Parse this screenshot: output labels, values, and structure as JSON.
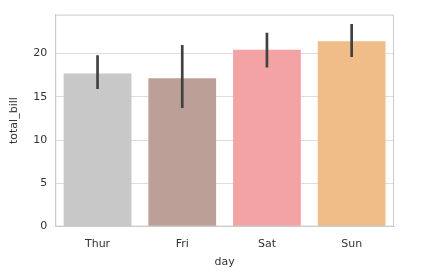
{
  "chart_data": {
    "type": "bar",
    "x_label": "day",
    "y_label": "total_bill",
    "categories": [
      "Thur",
      "Fri",
      "Sat",
      "Sun"
    ],
    "values": [
      17.68,
      17.15,
      20.44,
      21.41
    ],
    "error_low": [
      15.9,
      13.7,
      18.4,
      19.6
    ],
    "error_high": [
      19.8,
      21.0,
      22.4,
      23.4
    ],
    "colors": [
      "#c8c8c8",
      "#bc9f97",
      "#f3a3a3",
      "#f0bd88"
    ],
    "ylim": [
      0,
      24.5
    ],
    "yticks": [
      0,
      5,
      10,
      15,
      20
    ],
    "grid": true
  }
}
